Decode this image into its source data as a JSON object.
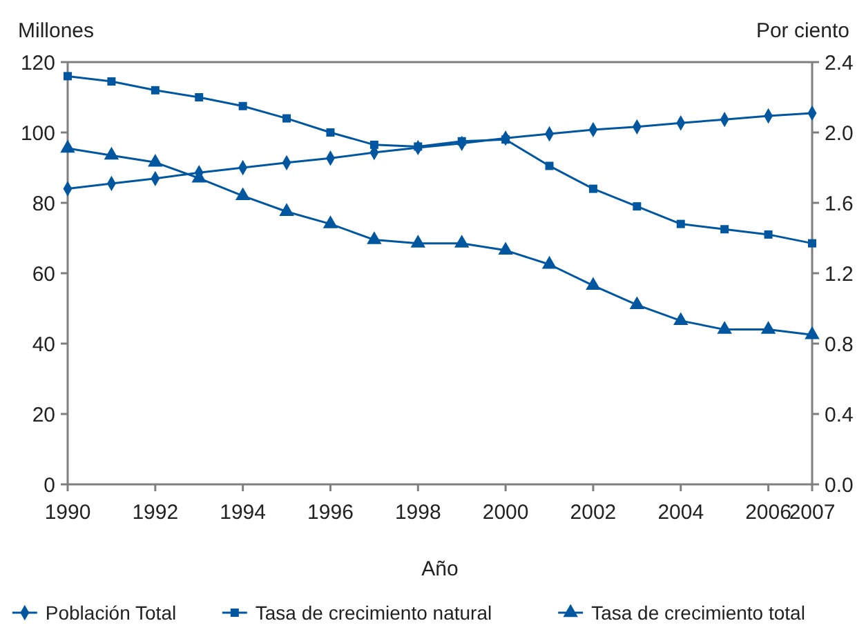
{
  "chart_data": {
    "type": "line",
    "xlabel": "Año",
    "ylabel": "Millones",
    "y2label": "Por ciento",
    "x": [
      1990,
      1991,
      1992,
      1993,
      1994,
      1995,
      1996,
      1997,
      1998,
      1999,
      2000,
      2001,
      2002,
      2003,
      2004,
      2005,
      2006,
      2007
    ],
    "xlim": [
      1990,
      2007
    ],
    "xticks": [
      1990,
      1992,
      1994,
      1996,
      1998,
      2000,
      2002,
      2004,
      2006,
      2007
    ],
    "ylim": [
      0,
      120
    ],
    "yticks": [
      0,
      20,
      40,
      60,
      80,
      100,
      120
    ],
    "y2lim": [
      0,
      2.4
    ],
    "y2ticks": [
      {
        "value": 0,
        "label": "0.0"
      },
      0.4,
      0.8,
      1.2,
      1.6,
      {
        "value": 2,
        "label": "2.0"
      },
      2.4
    ],
    "grid": false,
    "legend": "bottom",
    "line_style": "solid",
    "series": [
      {
        "name": "Población Total",
        "color": "#0057a0",
        "marker": "diamond",
        "values": [
          84,
          85.5,
          86.9,
          88.6,
          90,
          91.4,
          92.7,
          94.3,
          95.7,
          96.9,
          98.4,
          99.6,
          100.8,
          101.6,
          102.7,
          103.7,
          104.7,
          105.5
        ]
      },
      {
        "name": "Tasa de crecimiento natural",
        "color": "#0057a0",
        "marker": "square",
        "axis": "y2",
        "values": [
          2.32,
          2.29,
          2.24,
          2.2,
          2.15,
          2.08,
          2,
          1.93,
          1.92,
          1.95,
          1.96,
          1.81,
          1.68,
          1.58,
          1.48,
          1.45,
          1.42,
          1.37
        ]
      },
      {
        "name": "Tasa de crecimiento total",
        "color": "#0057a0",
        "marker": "triangle",
        "axis": "y2",
        "values": [
          1.91,
          1.87,
          1.83,
          1.74,
          1.64,
          1.55,
          1.48,
          1.39,
          1.37,
          1.37,
          1.33,
          1.25,
          1.13,
          1.02,
          0.93,
          0.88,
          0.88,
          0.85
        ]
      }
    ]
  }
}
